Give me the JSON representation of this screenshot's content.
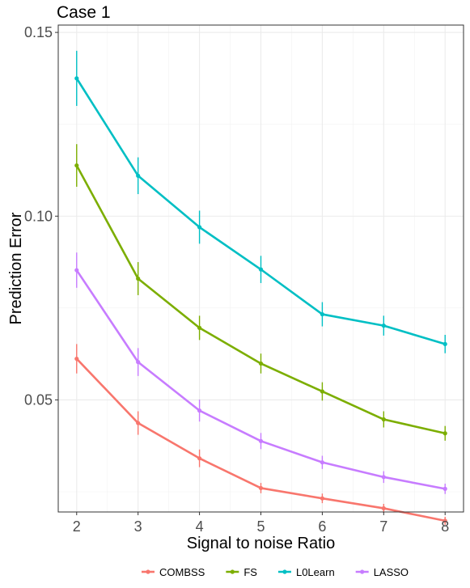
{
  "chart_data": {
    "type": "line",
    "title": "Case 1",
    "xlabel": "Signal to noise Ratio",
    "ylabel": "Prediction Error",
    "x": [
      2,
      3,
      4,
      5,
      6,
      7,
      8
    ],
    "xlim": [
      1.7,
      8.3
    ],
    "ylim": [
      0.0195,
      0.152
    ],
    "x_ticks": [
      "2",
      "3",
      "4",
      "5",
      "6",
      "7",
      "8"
    ],
    "y_ticks": [
      {
        "value": 0.05,
        "label": "0.05"
      },
      {
        "value": 0.1,
        "label": "0.10"
      },
      {
        "value": 0.15,
        "label": "0.15"
      }
    ],
    "grid": true,
    "error_bars": true,
    "legend_position": "bottom",
    "series": [
      {
        "name": "COMBSS",
        "color": "#F8766D",
        "values": [
          0.0612,
          0.0437,
          0.0341,
          0.026,
          0.0232,
          0.0205,
          0.0171
        ],
        "err": [
          0.004,
          0.0032,
          0.0024,
          0.0014,
          0.0013,
          0.0012,
          0.0011
        ]
      },
      {
        "name": "FS",
        "color": "#7CAE00",
        "values": [
          0.1138,
          0.083,
          0.0696,
          0.0599,
          0.0523,
          0.0447,
          0.0409
        ],
        "err": [
          0.0058,
          0.0045,
          0.0033,
          0.0027,
          0.0025,
          0.0022,
          0.002
        ]
      },
      {
        "name": "L0Learn",
        "color": "#00BFC4",
        "values": [
          0.1375,
          0.111,
          0.097,
          0.0855,
          0.0733,
          0.0702,
          0.0652
        ],
        "err": [
          0.0075,
          0.005,
          0.0045,
          0.0037,
          0.0033,
          0.0027,
          0.0025
        ]
      },
      {
        "name": "LASSO",
        "color": "#C77CFF",
        "values": [
          0.0853,
          0.0603,
          0.0471,
          0.0388,
          0.033,
          0.029,
          0.0258
        ],
        "err": [
          0.0048,
          0.0038,
          0.003,
          0.0022,
          0.0018,
          0.0016,
          0.0014
        ]
      }
    ]
  }
}
